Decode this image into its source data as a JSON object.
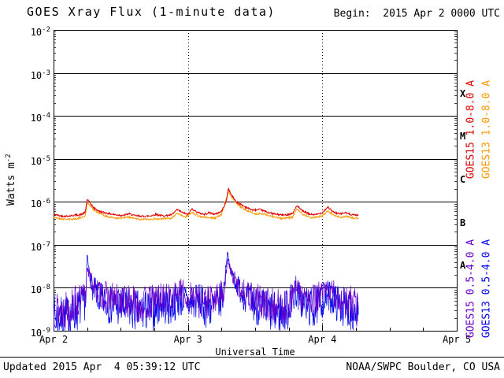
{
  "header": {
    "title": "GOES Xray Flux (1-minute data)",
    "begin_label": "Begin:  2015 Apr 2 0000 UTC"
  },
  "footer": {
    "updated": "Updated 2015 Apr  4 05:39:12 UTC",
    "credit": "NOAA/SWPC Boulder, CO USA"
  },
  "axis": {
    "y_label_base": "Watts m",
    "y_label_exp": "-2",
    "x_label": "Universal Time"
  },
  "legend": [
    {
      "text": "GOES15 1.0-8.0 A",
      "color": "#dd0000",
      "col": 0,
      "row": 0
    },
    {
      "text": "GOES13 1.0-8.0 A",
      "color": "#ff9900",
      "col": 1,
      "row": 0
    },
    {
      "text": "GOES15 0.5-4.0 A",
      "color": "#6600cc",
      "col": 0,
      "row": 1
    },
    {
      "text": "GOES13 0.5-4.0 A",
      "color": "#0000ee",
      "col": 1,
      "row": 1
    }
  ],
  "chart_data": {
    "type": "line",
    "title": "GOES Xray Flux (1-minute data)",
    "xlabel": "Universal Time",
    "ylabel": "Watts m^-2",
    "x_unit": "days since 2015 Apr 2 0000 UTC",
    "x_range_days": [
      0,
      3
    ],
    "x_ticks": [
      {
        "label": "Apr 2",
        "day": 0
      },
      {
        "label": "Apr 3",
        "day": 1
      },
      {
        "label": "Apr 4",
        "day": 2
      },
      {
        "label": "Apr 5",
        "day": 3
      }
    ],
    "x_minor_tick_days": 0.25,
    "y_log_range": [
      -9,
      -2
    ],
    "y_tick_exponents": [
      -2,
      -3,
      -4,
      -5,
      -6,
      -7,
      -8,
      -9
    ],
    "grid": {
      "horizontal": "solid-per-decade",
      "vertical": "dotted-at-day-boundaries"
    },
    "flare_classes": [
      {
        "label": "X",
        "log_center": -3.5
      },
      {
        "label": "M",
        "log_center": -4.5
      },
      {
        "label": "C",
        "log_center": -5.5
      },
      {
        "label": "B",
        "log_center": -6.5
      },
      {
        "label": "A",
        "log_center": -7.5
      }
    ],
    "flux_floor": 1e-09,
    "sample_step_days": 0.003,
    "series": [
      {
        "name": "GOES13 0.5-4.0 A",
        "color": "#0000ee",
        "stroke_width": 0.7,
        "seed": 7,
        "jitter_log": 0.5,
        "jitter_damp": {
          "ref": -7.3,
          "range": 1.2,
          "min": 0.12
        },
        "points": [
          [
            0.0,
            2.2e-09
          ],
          [
            0.06,
            2e-09
          ],
          [
            0.12,
            2.2e-09
          ],
          [
            0.18,
            3e-09
          ],
          [
            0.24,
            5e-09
          ],
          [
            0.25,
            6.5e-08
          ],
          [
            0.26,
            3e-08
          ],
          [
            0.29,
            1e-08
          ],
          [
            0.34,
            5.5e-09
          ],
          [
            0.42,
            4e-09
          ],
          [
            0.5,
            3.5e-09
          ],
          [
            0.58,
            3e-09
          ],
          [
            0.66,
            2.8e-09
          ],
          [
            0.74,
            3e-09
          ],
          [
            0.8,
            4.5e-09
          ],
          [
            0.86,
            3.5e-09
          ],
          [
            0.92,
            5e-09
          ],
          [
            0.97,
            5.5e-09
          ],
          [
            1.02,
            4e-09
          ],
          [
            1.07,
            5e-09
          ],
          [
            1.13,
            3.5e-09
          ],
          [
            1.2,
            3.5e-09
          ],
          [
            1.26,
            6e-09
          ],
          [
            1.295,
            7.5e-08
          ],
          [
            1.31,
            3e-08
          ],
          [
            1.36,
            1.2e-08
          ],
          [
            1.43,
            6e-09
          ],
          [
            1.5,
            4e-09
          ],
          [
            1.58,
            3e-09
          ],
          [
            1.66,
            2.5e-09
          ],
          [
            1.74,
            3e-09
          ],
          [
            1.8,
            8e-09
          ],
          [
            1.86,
            4e-09
          ],
          [
            1.94,
            3.2e-09
          ],
          [
            2.0,
            5e-09
          ],
          [
            2.05,
            6.5e-09
          ],
          [
            2.11,
            4.5e-09
          ],
          [
            2.17,
            3.5e-09
          ],
          [
            2.23,
            3e-09
          ],
          [
            2.27,
            2.5e-09
          ]
        ]
      },
      {
        "name": "GOES15 0.5-4.0 A",
        "color": "#6600cc",
        "stroke_width": 0.7,
        "seed": 13,
        "jitter_log": 0.48,
        "jitter_damp": {
          "ref": -7.3,
          "range": 1.2,
          "min": 0.12
        },
        "points": [
          [
            0.0,
            3.5e-09
          ],
          [
            0.05,
            3e-09
          ],
          [
            0.1,
            3.2e-09
          ],
          [
            0.15,
            4e-09
          ],
          [
            0.2,
            5e-09
          ],
          [
            0.24,
            7e-09
          ],
          [
            0.25,
            3.5e-08
          ],
          [
            0.27,
            1.6e-08
          ],
          [
            0.31,
            9e-09
          ],
          [
            0.37,
            6.5e-09
          ],
          [
            0.44,
            5.5e-09
          ],
          [
            0.52,
            5e-09
          ],
          [
            0.58,
            4.5e-09
          ],
          [
            0.65,
            4e-09
          ],
          [
            0.72,
            4.5e-09
          ],
          [
            0.78,
            6e-09
          ],
          [
            0.84,
            5e-09
          ],
          [
            0.9,
            7e-09
          ],
          [
            0.95,
            8e-09
          ],
          [
            1.0,
            5.5e-09
          ],
          [
            1.05,
            7e-09
          ],
          [
            1.1,
            5e-09
          ],
          [
            1.16,
            4.5e-09
          ],
          [
            1.22,
            5.5e-09
          ],
          [
            1.27,
            9e-09
          ],
          [
            1.295,
            4.5e-08
          ],
          [
            1.32,
            2.2e-08
          ],
          [
            1.38,
            1e-08
          ],
          [
            1.45,
            6.5e-09
          ],
          [
            1.52,
            5e-09
          ],
          [
            1.6,
            4e-09
          ],
          [
            1.68,
            3.5e-09
          ],
          [
            1.76,
            4.5e-09
          ],
          [
            1.8,
            1.1e-08
          ],
          [
            1.85,
            6e-09
          ],
          [
            1.92,
            4.5e-09
          ],
          [
            2.0,
            7e-09
          ],
          [
            2.05,
            9e-09
          ],
          [
            2.1,
            6e-09
          ],
          [
            2.16,
            5e-09
          ],
          [
            2.22,
            4e-09
          ],
          [
            2.27,
            3.5e-09
          ]
        ]
      },
      {
        "name": "GOES13 1.0-8.0 A",
        "color": "#ff9900",
        "stroke_width": 1,
        "seed": 21,
        "jitter_log": 0.02,
        "points": [
          [
            0.0,
            4.3e-07
          ],
          [
            0.06,
            4e-07
          ],
          [
            0.12,
            3.9e-07
          ],
          [
            0.18,
            4.1e-07
          ],
          [
            0.235,
            4.6e-07
          ],
          [
            0.25,
            9.5e-07
          ],
          [
            0.28,
            7.6e-07
          ],
          [
            0.32,
            5.8e-07
          ],
          [
            0.4,
            4.5e-07
          ],
          [
            0.48,
            4.1e-07
          ],
          [
            0.56,
            4.4e-07
          ],
          [
            0.64,
            3.9e-07
          ],
          [
            0.72,
            4e-07
          ],
          [
            0.8,
            4e-07
          ],
          [
            0.88,
            4.2e-07
          ],
          [
            0.92,
            5.5e-07
          ],
          [
            0.98,
            4.4e-07
          ],
          [
            1.03,
            5.7e-07
          ],
          [
            1.08,
            4.6e-07
          ],
          [
            1.14,
            4.3e-07
          ],
          [
            1.2,
            4.2e-07
          ],
          [
            1.25,
            5e-07
          ],
          [
            1.3,
            1.75e-06
          ],
          [
            1.33,
            1.2e-06
          ],
          [
            1.38,
            8e-07
          ],
          [
            1.44,
            6.2e-07
          ],
          [
            1.5,
            5.2e-07
          ],
          [
            1.56,
            5.3e-07
          ],
          [
            1.62,
            4.6e-07
          ],
          [
            1.7,
            4.1e-07
          ],
          [
            1.78,
            4.4e-07
          ],
          [
            1.81,
            6.8e-07
          ],
          [
            1.86,
            5e-07
          ],
          [
            1.92,
            4.3e-07
          ],
          [
            2.0,
            4.6e-07
          ],
          [
            2.04,
            6.2e-07
          ],
          [
            2.09,
            4.8e-07
          ],
          [
            2.14,
            4.3e-07
          ],
          [
            2.18,
            4.6e-07
          ],
          [
            2.23,
            4.2e-07
          ],
          [
            2.27,
            4.1e-07
          ]
        ]
      },
      {
        "name": "GOES15 1.0-8.0 A",
        "color": "#dd0000",
        "stroke_width": 1,
        "seed": 42,
        "jitter_log": 0.02,
        "points": [
          [
            0.0,
            5.2e-07
          ],
          [
            0.04,
            4.8e-07
          ],
          [
            0.08,
            4.6e-07
          ],
          [
            0.12,
            4.7e-07
          ],
          [
            0.16,
            4.9e-07
          ],
          [
            0.2,
            5e-07
          ],
          [
            0.235,
            5.6e-07
          ],
          [
            0.25,
            1.15e-06
          ],
          [
            0.27,
            9.5e-07
          ],
          [
            0.3,
            7.2e-07
          ],
          [
            0.34,
            6e-07
          ],
          [
            0.4,
            5.4e-07
          ],
          [
            0.46,
            5e-07
          ],
          [
            0.52,
            4.8e-07
          ],
          [
            0.56,
            5.3e-07
          ],
          [
            0.6,
            4.8e-07
          ],
          [
            0.66,
            4.6e-07
          ],
          [
            0.72,
            4.7e-07
          ],
          [
            0.76,
            5.1e-07
          ],
          [
            0.82,
            4.7e-07
          ],
          [
            0.88,
            5e-07
          ],
          [
            0.92,
            6.6e-07
          ],
          [
            0.96,
            5.6e-07
          ],
          [
            1.0,
            5.1e-07
          ],
          [
            1.03,
            6.9e-07
          ],
          [
            1.07,
            5.7e-07
          ],
          [
            1.12,
            5.1e-07
          ],
          [
            1.16,
            5.6e-07
          ],
          [
            1.2,
            5.1e-07
          ],
          [
            1.25,
            6e-07
          ],
          [
            1.285,
            1e-06
          ],
          [
            1.3,
            2.1e-06
          ],
          [
            1.32,
            1.5e-06
          ],
          [
            1.36,
            1e-06
          ],
          [
            1.42,
            7.8e-07
          ],
          [
            1.48,
            6.4e-07
          ],
          [
            1.54,
            6.6e-07
          ],
          [
            1.6,
            5.6e-07
          ],
          [
            1.66,
            5.1e-07
          ],
          [
            1.72,
            4.9e-07
          ],
          [
            1.78,
            5.4e-07
          ],
          [
            1.81,
            8.2e-07
          ],
          [
            1.85,
            6.2e-07
          ],
          [
            1.9,
            5.2e-07
          ],
          [
            1.95,
            5e-07
          ],
          [
            2.0,
            5.6e-07
          ],
          [
            2.04,
            7.6e-07
          ],
          [
            2.08,
            5.8e-07
          ],
          [
            2.13,
            5.2e-07
          ],
          [
            2.17,
            5.6e-07
          ],
          [
            2.21,
            5.1e-07
          ],
          [
            2.25,
            4.9e-07
          ],
          [
            2.27,
            5e-07
          ]
        ]
      }
    ]
  }
}
